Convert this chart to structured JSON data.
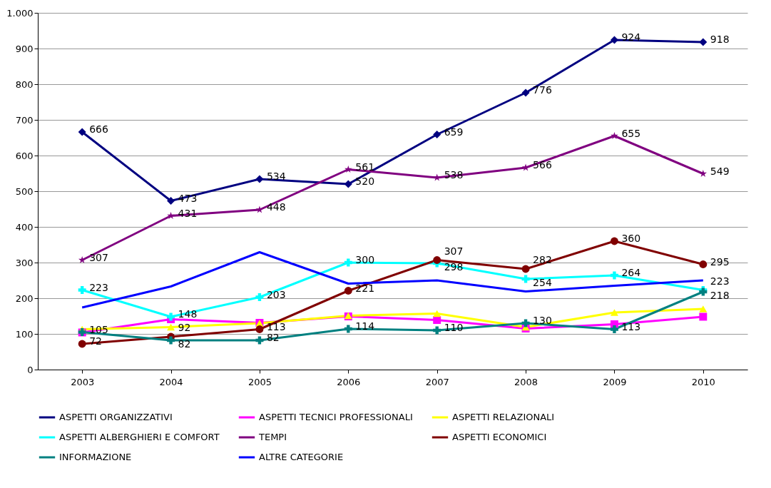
{
  "chart_data": {
    "type": "line",
    "categories": [
      "2003",
      "2004",
      "2005",
      "2006",
      "2007",
      "2008",
      "2009",
      "2010"
    ],
    "ylim": [
      0,
      1000
    ],
    "yticks": [
      0,
      100,
      200,
      300,
      400,
      500,
      600,
      700,
      800,
      900,
      {
        "value": 1000,
        "label": "1.000"
      }
    ],
    "grid": "y",
    "legend": "bottom",
    "series": [
      {
        "name": "ASPETTI ORGANIZZATIVI",
        "color": "#000080",
        "marker": "diamond",
        "values": [
          666,
          473,
          534,
          520,
          659,
          776,
          924,
          918
        ],
        "value_labels": [
          "666",
          "473",
          "534",
          "520",
          "659",
          "776",
          "924",
          "918"
        ]
      },
      {
        "name": "ASPETTI TECNICI PROFESSIONALI",
        "color": "#ff00ff",
        "marker": "square",
        "values": [
          104,
          141,
          131,
          149,
          139,
          115,
          127,
          148
        ]
      },
      {
        "name": "ASPETTI RELAZIONALI",
        "color": "#ffff00",
        "marker": "triangle",
        "values": [
          113,
          119,
          130,
          151,
          157,
          119,
          160,
          170
        ]
      },
      {
        "name": "ASPETTI ALBERGHIERI E COMFORT",
        "color": "#00ffff",
        "marker": "cross",
        "values": [
          223,
          148,
          203,
          300,
          298,
          254,
          264,
          223
        ],
        "value_labels": [
          "223",
          "148",
          "203",
          "300",
          "298",
          "254",
          "264",
          "223"
        ]
      },
      {
        "name": "TEMPI",
        "color": "#800080",
        "marker": "star",
        "values": [
          307,
          431,
          448,
          561,
          538,
          566,
          655,
          549
        ],
        "value_labels": [
          "307",
          "431",
          "448",
          "561",
          "538",
          "566",
          "655",
          "549"
        ]
      },
      {
        "name": "ASPETTI ECONOMICI",
        "color": "#800000",
        "marker": "circle",
        "values": [
          72,
          92,
          113,
          221,
          307,
          282,
          360,
          295
        ],
        "value_labels": [
          "72",
          "92",
          "113",
          "221",
          "307",
          "282",
          "360",
          "295"
        ]
      },
      {
        "name": "INFORMAZIONE",
        "color": "#008080",
        "marker": "cross",
        "values": [
          105,
          82,
          82,
          114,
          110,
          130,
          113,
          218
        ],
        "value_labels": [
          "105",
          "82",
          "82",
          "114",
          "110",
          "130",
          "113",
          "218"
        ]
      },
      {
        "name": "ALTRE CATEGORIE",
        "color": "#0000ff",
        "marker": "none",
        "values": [
          174,
          233,
          329,
          241,
          250,
          219,
          235,
          250
        ]
      }
    ]
  }
}
